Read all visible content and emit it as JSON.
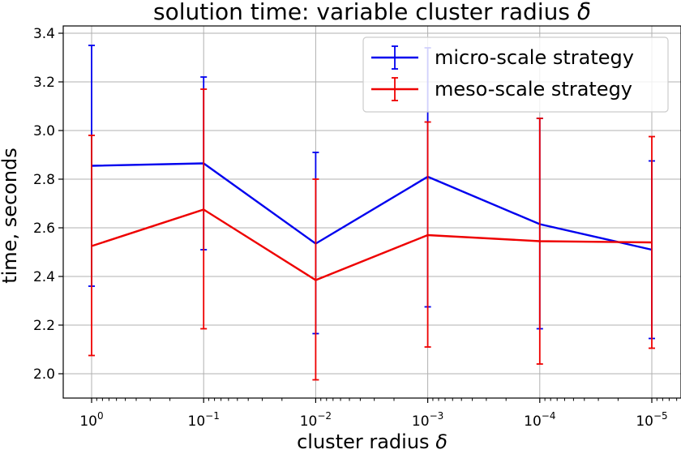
{
  "chart_data": {
    "type": "line",
    "title_prefix": "solution time: variable cluster radius ",
    "title_symbol": "δ",
    "xlabel_prefix": "cluster radius ",
    "xlabel_symbol": "δ",
    "ylabel": "time, seconds",
    "x_scale": "log",
    "x_reversed": true,
    "x": [
      1,
      0.1,
      0.01,
      0.001,
      0.0001,
      1e-05
    ],
    "x_tick_labels": [
      {
        "base": "10",
        "exp": "0"
      },
      {
        "base": "10",
        "exp": "−1"
      },
      {
        "base": "10",
        "exp": "−2"
      },
      {
        "base": "10",
        "exp": "−3"
      },
      {
        "base": "10",
        "exp": "−4"
      },
      {
        "base": "10",
        "exp": "−5"
      }
    ],
    "ylim": [
      1.9,
      3.43
    ],
    "y_ticks": [
      "2.0",
      "2.2",
      "2.4",
      "2.6",
      "2.8",
      "3.0",
      "3.2",
      "3.4"
    ],
    "grid": true,
    "legend_position": "top-right",
    "series": [
      {
        "name": "micro-scale strategy",
        "color": "#0000ee",
        "values": [
          2.855,
          2.865,
          2.535,
          2.81,
          2.615,
          2.51
        ],
        "err_low": [
          2.36,
          2.51,
          2.165,
          2.275,
          2.185,
          2.145
        ],
        "err_high": [
          3.35,
          3.22,
          2.91,
          3.34,
          3.05,
          2.875
        ]
      },
      {
        "name": "meso-scale strategy",
        "color": "#ee0000",
        "values": [
          2.525,
          2.675,
          2.385,
          2.57,
          2.545,
          2.54
        ],
        "err_low": [
          2.075,
          2.185,
          1.975,
          2.11,
          2.04,
          2.105
        ],
        "err_high": [
          2.98,
          3.17,
          2.8,
          3.035,
          3.05,
          2.975
        ]
      }
    ]
  }
}
